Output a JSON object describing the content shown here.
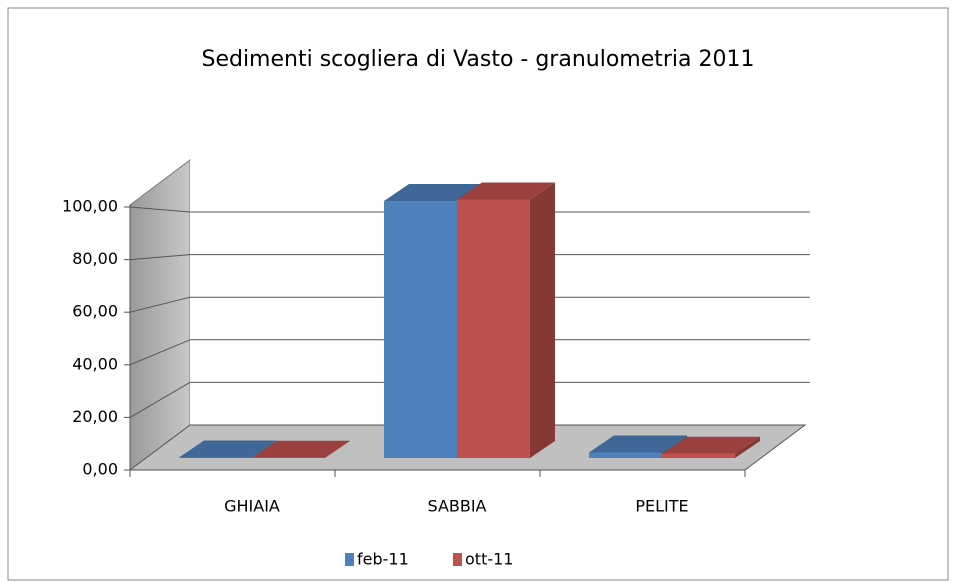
{
  "chart_data": {
    "type": "bar3d",
    "title": "Sedimenti scogliera di Vasto - granulometria 2011",
    "categories": [
      "GHIAIA",
      "SABBIA",
      "PELITE"
    ],
    "series": [
      {
        "name": "feb-11",
        "color": "#4f81bd",
        "values": [
          0.2,
          97.7,
          2.1
        ]
      },
      {
        "name": "ott-11",
        "color": "#c0504d",
        "values": [
          0.1,
          98.3,
          1.6
        ]
      }
    ],
    "ylim": [
      0,
      100
    ],
    "yticks": [
      {
        "value": 0,
        "label": "0,00"
      },
      {
        "value": 20,
        "label": "20,00"
      },
      {
        "value": 40,
        "label": "40,00"
      },
      {
        "value": 60,
        "label": "60,00"
      },
      {
        "value": 80,
        "label": "80,00"
      },
      {
        "value": 100,
        "label": "100,00"
      }
    ],
    "grid": true,
    "legend": "bottom"
  }
}
